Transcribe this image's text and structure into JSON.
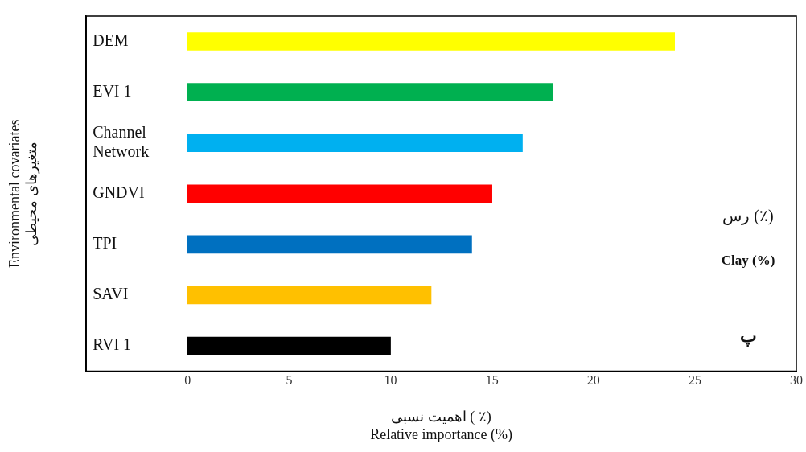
{
  "chart_data": {
    "type": "bar",
    "orientation": "horizontal",
    "categories": [
      "DEM",
      "EVI 1",
      "Channel Network",
      "GNDVI",
      "TPI",
      "SAVI",
      "RVI 1"
    ],
    "values": [
      24,
      18,
      16.5,
      15,
      14,
      12,
      10
    ],
    "colors": [
      "#ffff00",
      "#00b050",
      "#00b0f0",
      "#ff0000",
      "#0070c0",
      "#ffc000",
      "#000000"
    ],
    "xlim": [
      -5,
      30
    ],
    "xticks": [
      0,
      5,
      10,
      15,
      20,
      25,
      30
    ],
    "xlabel": "اهمیت نسبی ( ٪)\nRelative importance (%)",
    "ylabel": "Environmental covariates\nمتغیرهای محیطی",
    "annotations": [
      "رس (٪)",
      "Clay (%)",
      "پ"
    ],
    "grid": false,
    "legend": false
  }
}
